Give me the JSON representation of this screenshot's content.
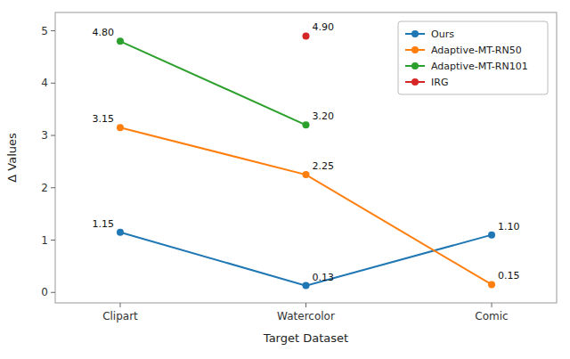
{
  "chart_data": {
    "type": "line",
    "x_label": "Target Dataset",
    "y_label": "Δ Values",
    "categories": [
      "Clipart",
      "Watercolor",
      "Comic"
    ],
    "series": [
      {
        "name": "Ours",
        "color": "#1f77b4",
        "marker": "circle",
        "values": [
          1.15,
          0.13,
          1.1
        ],
        "value_labels": [
          "1.15",
          "0.13",
          "1.10"
        ]
      },
      {
        "name": "Adaptive-MT-RN50",
        "color": "#ff7f0e",
        "marker": "circle",
        "values": [
          3.15,
          2.25,
          0.15
        ],
        "value_labels": [
          "3.15",
          "2.25",
          "0.15"
        ]
      },
      {
        "name": "Adaptive-MT-RN101",
        "color": "#2ca02c",
        "marker": "circle",
        "values": [
          4.8,
          3.2,
          null
        ],
        "value_labels": [
          "4.80",
          "3.20",
          null
        ]
      },
      {
        "name": "IRG",
        "color": "#d62728",
        "marker": "circle",
        "values": [
          null,
          4.9,
          null
        ],
        "value_labels": [
          null,
          "4.90",
          null
        ]
      }
    ],
    "ylim": [
      -0.2,
      5.35
    ],
    "yticks": [
      0,
      1,
      2,
      3,
      4,
      5
    ],
    "grid": false,
    "legend": "upper right",
    "data_labels": true
  }
}
